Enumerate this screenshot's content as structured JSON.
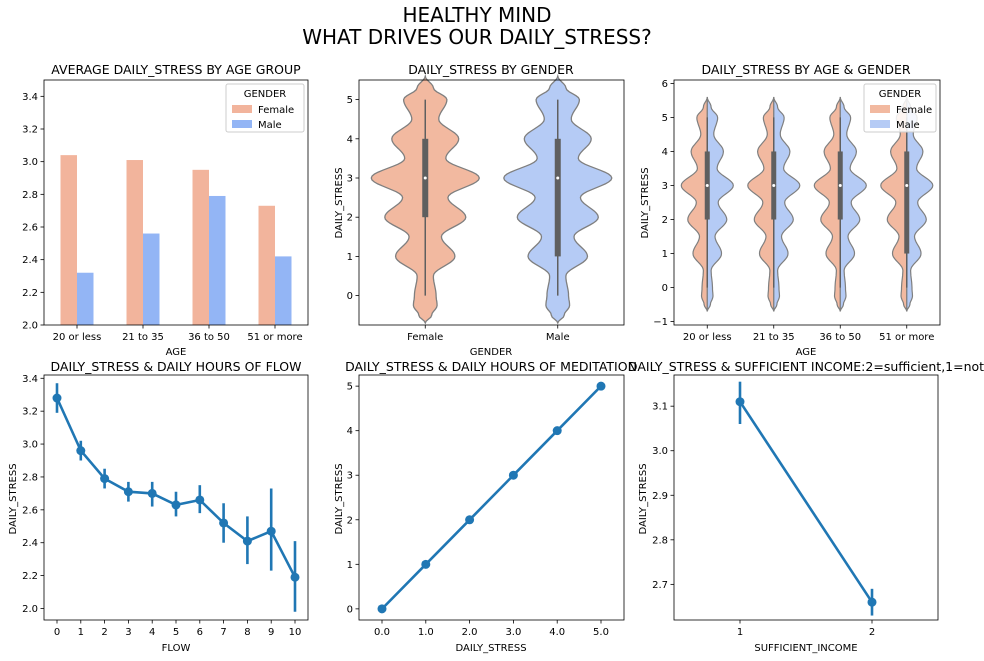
{
  "figure": {
    "title_line1": "HEALTHY MIND",
    "title_line2": "WHAT DRIVES OUR DAILY_STRESS?"
  },
  "colors": {
    "female": "#f2b49c",
    "male": "#93b5f5",
    "female_violin": "#f2b9a0",
    "male_violin": "#b5cbf5",
    "line": "#2077b4",
    "violin_edge": "#7f7f7f",
    "box": "#5f5f5f"
  },
  "chart_data": [
    {
      "id": "p1",
      "type": "bar",
      "title": "AVERAGE DAILY_STRESS BY AGE GROUP",
      "xlabel": "AGE",
      "ylabel": "",
      "categories": [
        "20 or less",
        "21 to 35",
        "36 to 50",
        "51 or more"
      ],
      "series": [
        {
          "name": "Female",
          "values": [
            3.04,
            3.01,
            2.95,
            2.73
          ]
        },
        {
          "name": "Male",
          "values": [
            2.32,
            2.56,
            2.79,
            2.42
          ]
        }
      ],
      "ylim": [
        2.0,
        3.5
      ],
      "yticks": [
        "2.0",
        "2.2",
        "2.4",
        "2.6",
        "2.8",
        "3.0",
        "3.2",
        "3.4"
      ],
      "legend": {
        "title": "GENDER",
        "entries": [
          "Female",
          "Male"
        ],
        "placement": "top-right"
      },
      "grid": false
    },
    {
      "id": "p2",
      "type": "violin",
      "title": "DAILY_STRESS BY GENDER",
      "xlabel": "GENDER",
      "ylabel": "DAILY_STRESS",
      "categories": [
        "Female",
        "Male"
      ],
      "ylim": [
        -0.75,
        5.5
      ],
      "yticks": [
        "0",
        "1",
        "2",
        "3",
        "4",
        "5"
      ],
      "violins": [
        {
          "category": "Female",
          "median": 3,
          "q1": 2,
          "q3": 4,
          "min": 0,
          "max": 5
        },
        {
          "category": "Male",
          "median": 3,
          "q1": 1,
          "q3": 4,
          "min": 0,
          "max": 5
        }
      ],
      "grid": false
    },
    {
      "id": "p3",
      "type": "violin",
      "title": "DAILY_STRESS BY AGE & GENDER",
      "xlabel": "AGE",
      "ylabel": "DAILY_STRESS",
      "categories": [
        "20 or less",
        "21 to 35",
        "36 to 50",
        "51 or more"
      ],
      "ylim": [
        -1.1,
        6.1
      ],
      "yticks": [
        "−1",
        "0",
        "1",
        "2",
        "3",
        "4",
        "5",
        "6"
      ],
      "violins": [
        {
          "category": "20 or less",
          "median": 3,
          "q1": 2,
          "q3": 4,
          "min": 0,
          "max": 5
        },
        {
          "category": "21 to 35",
          "median": 3,
          "q1": 2,
          "q3": 4,
          "min": 0,
          "max": 5
        },
        {
          "category": "36 to 50",
          "median": 3,
          "q1": 2,
          "q3": 4,
          "min": 0,
          "max": 5
        },
        {
          "category": "51 or more",
          "median": 3,
          "q1": 1,
          "q3": 4,
          "min": 0,
          "max": 5
        }
      ],
      "legend": {
        "title": "GENDER",
        "entries": [
          "Female",
          "Male"
        ],
        "placement": "top-right"
      },
      "grid": false
    },
    {
      "id": "p4",
      "type": "line",
      "title": "DAILY_STRESS & DAILY HOURS OF FLOW",
      "xlabel": "FLOW",
      "ylabel": "DAILY_STRESS",
      "x": [
        "0",
        "1",
        "2",
        "3",
        "4",
        "5",
        "6",
        "7",
        "8",
        "9",
        "10"
      ],
      "values": [
        3.28,
        2.96,
        2.79,
        2.71,
        2.7,
        2.63,
        2.66,
        2.52,
        2.41,
        2.47,
        2.19
      ],
      "err_low": [
        3.19,
        2.9,
        2.73,
        2.65,
        2.62,
        2.56,
        2.58,
        2.4,
        2.27,
        2.23,
        1.98
      ],
      "err_high": [
        3.37,
        3.02,
        2.85,
        2.77,
        2.77,
        2.71,
        2.75,
        2.64,
        2.56,
        2.73,
        2.41
      ],
      "ylim": [
        1.93,
        3.42
      ],
      "yticks": [
        "2.0",
        "2.2",
        "2.4",
        "2.6",
        "2.8",
        "3.0",
        "3.2",
        "3.4"
      ],
      "grid": false
    },
    {
      "id": "p5",
      "type": "line",
      "title": "DAILY_STRESS & DAILY HOURS OF MEDITATION",
      "xlabel": "DAILY_STRESS",
      "ylabel": "DAILY_STRESS",
      "x": [
        "0.0",
        "1.0",
        "2.0",
        "3.0",
        "4.0",
        "5.0"
      ],
      "values": [
        0,
        1,
        2,
        3,
        4,
        5
      ],
      "ylim": [
        -0.25,
        5.25
      ],
      "yticks": [
        "0",
        "1",
        "2",
        "3",
        "4",
        "5"
      ],
      "grid": false
    },
    {
      "id": "p6",
      "type": "line",
      "title": "DAILY_STRESS & SUFFICIENT INCOME:2=sufficient,1=not",
      "xlabel": "SUFFICIENT_INCOME",
      "ylabel": "DAILY_STRESS",
      "x": [
        "1",
        "2"
      ],
      "values": [
        3.11,
        2.66
      ],
      "err_low": [
        3.06,
        2.63
      ],
      "err_high": [
        3.155,
        2.69
      ],
      "ylim": [
        2.62,
        3.17
      ],
      "yticks": [
        "2.7",
        "2.8",
        "2.9",
        "3.0",
        "3.1"
      ],
      "grid": false
    }
  ]
}
